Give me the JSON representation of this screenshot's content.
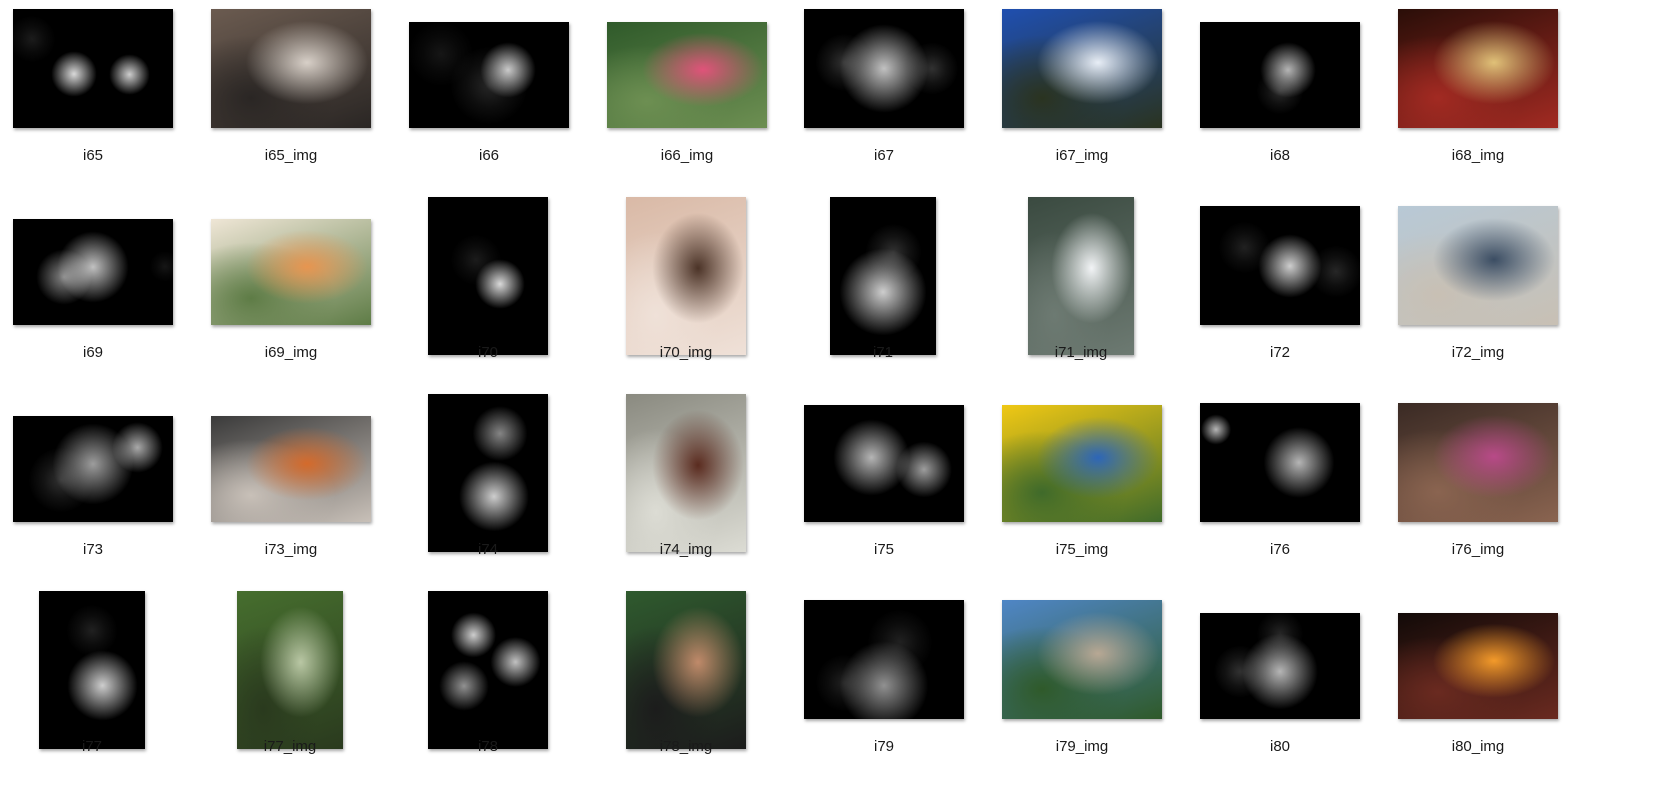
{
  "files": [
    {
      "name": "i65",
      "kind": "heatmap"
    },
    {
      "name": "i65_img",
      "kind": "photo",
      "palette": [
        "#6b5b50",
        "#d8d0c8",
        "#2a2624"
      ]
    },
    {
      "name": "i66",
      "kind": "heatmap"
    },
    {
      "name": "i66_img",
      "kind": "photo",
      "palette": [
        "#2f5a2a",
        "#e0537a",
        "#6d8f52"
      ]
    },
    {
      "name": "i67",
      "kind": "heatmap"
    },
    {
      "name": "i67_img",
      "kind": "photo",
      "palette": [
        "#1f4fb0",
        "#e8eef6",
        "#2a3320"
      ]
    },
    {
      "name": "i68",
      "kind": "heatmap"
    },
    {
      "name": "i68_img",
      "kind": "photo",
      "palette": [
        "#2a0e08",
        "#e0c178",
        "#a22a22"
      ]
    },
    {
      "name": "i69",
      "kind": "heatmap"
    },
    {
      "name": "i69_img",
      "kind": "photo",
      "palette": [
        "#efe6d6",
        "#e79550",
        "#5e7c46"
      ]
    },
    {
      "name": "i70",
      "kind": "heatmap"
    },
    {
      "name": "i70_img",
      "kind": "photo",
      "palette": [
        "#d9b9a6",
        "#4b3327",
        "#efe1d8"
      ]
    },
    {
      "name": "i71",
      "kind": "heatmap"
    },
    {
      "name": "i71_img",
      "kind": "photo",
      "palette": [
        "#3a4a40",
        "#f2f4f6",
        "#6d7a72"
      ]
    },
    {
      "name": "i72",
      "kind": "heatmap"
    },
    {
      "name": "i72_img",
      "kind": "photo",
      "palette": [
        "#b8c9d6",
        "#3b4d63",
        "#c8c0b4"
      ]
    },
    {
      "name": "i73",
      "kind": "heatmap"
    },
    {
      "name": "i73_img",
      "kind": "photo",
      "palette": [
        "#3a3a3a",
        "#d46a2b",
        "#c8c0b8"
      ]
    },
    {
      "name": "i74",
      "kind": "heatmap"
    },
    {
      "name": "i74_img",
      "kind": "photo",
      "palette": [
        "#8a8a80",
        "#5a2b1f",
        "#dcdcd4"
      ]
    },
    {
      "name": "i75",
      "kind": "heatmap"
    },
    {
      "name": "i75_img",
      "kind": "photo",
      "palette": [
        "#f0c814",
        "#2d66b8",
        "#3f6a2a"
      ]
    },
    {
      "name": "i76",
      "kind": "heatmap"
    },
    {
      "name": "i76_img",
      "kind": "photo",
      "palette": [
        "#3a2a24",
        "#b84a88",
        "#8a6450"
      ]
    },
    {
      "name": "i77",
      "kind": "heatmap"
    },
    {
      "name": "i77_img",
      "kind": "photo",
      "palette": [
        "#466e2e",
        "#b9c7a4",
        "#2a3a1e"
      ]
    },
    {
      "name": "i78",
      "kind": "heatmap"
    },
    {
      "name": "i78_img",
      "kind": "photo",
      "palette": [
        "#2f5a2e",
        "#c08a6a",
        "#1c1c1c"
      ]
    },
    {
      "name": "i79",
      "kind": "heatmap"
    },
    {
      "name": "i79_img",
      "kind": "photo",
      "palette": [
        "#4f86c6",
        "#b8a894",
        "#2f5a2a"
      ]
    },
    {
      "name": "i80",
      "kind": "heatmap"
    },
    {
      "name": "i80_img",
      "kind": "photo",
      "palette": [
        "#120a08",
        "#f39a2a",
        "#6a2a20"
      ]
    }
  ],
  "heatmaps": {
    "i65": [
      [
        0.38,
        0.55,
        0.18,
        0.9
      ],
      [
        0.73,
        0.55,
        0.16,
        0.85
      ],
      [
        0.12,
        0.25,
        0.18,
        0.25
      ]
    ],
    "i66": [
      [
        0.62,
        0.45,
        0.22,
        0.85
      ],
      [
        0.5,
        0.6,
        0.3,
        0.35
      ],
      [
        0.2,
        0.3,
        0.25,
        0.2
      ]
    ],
    "i67": [
      [
        0.5,
        0.5,
        0.35,
        0.8
      ],
      [
        0.25,
        0.45,
        0.22,
        0.45
      ],
      [
        0.8,
        0.5,
        0.2,
        0.45
      ]
    ],
    "i68": [
      [
        0.55,
        0.45,
        0.22,
        0.75
      ],
      [
        0.5,
        0.65,
        0.18,
        0.4
      ]
    ],
    "i69": [
      [
        0.5,
        0.45,
        0.28,
        0.8
      ],
      [
        0.32,
        0.55,
        0.22,
        0.55
      ],
      [
        0.95,
        0.45,
        0.12,
        0.2
      ]
    ],
    "i70": [
      [
        0.6,
        0.55,
        0.2,
        0.9
      ],
      [
        0.4,
        0.4,
        0.2,
        0.25
      ]
    ],
    "i71": [
      [
        0.5,
        0.6,
        0.35,
        0.85
      ],
      [
        0.6,
        0.35,
        0.22,
        0.45
      ]
    ],
    "i72": [
      [
        0.56,
        0.5,
        0.25,
        0.85
      ],
      [
        0.28,
        0.35,
        0.2,
        0.3
      ],
      [
        0.85,
        0.55,
        0.2,
        0.35
      ]
    ],
    "i73": [
      [
        0.5,
        0.45,
        0.32,
        0.65
      ],
      [
        0.78,
        0.3,
        0.2,
        0.7
      ],
      [
        0.3,
        0.6,
        0.25,
        0.45
      ]
    ],
    "i74": [
      [
        0.55,
        0.65,
        0.28,
        0.85
      ],
      [
        0.6,
        0.25,
        0.22,
        0.55
      ]
    ],
    "i75": [
      [
        0.42,
        0.45,
        0.3,
        0.75
      ],
      [
        0.75,
        0.55,
        0.22,
        0.65
      ]
    ],
    "i76": [
      [
        0.1,
        0.22,
        0.12,
        0.75
      ],
      [
        0.62,
        0.5,
        0.28,
        0.75
      ]
    ],
    "i77": [
      [
        0.6,
        0.6,
        0.28,
        0.85
      ],
      [
        0.5,
        0.25,
        0.2,
        0.3
      ]
    ],
    "i78": [
      [
        0.38,
        0.28,
        0.18,
        0.85
      ],
      [
        0.3,
        0.6,
        0.2,
        0.6
      ],
      [
        0.73,
        0.45,
        0.2,
        0.8
      ]
    ],
    "i79": [
      [
        0.5,
        0.72,
        0.35,
        0.6
      ],
      [
        0.6,
        0.35,
        0.25,
        0.3
      ],
      [
        0.25,
        0.7,
        0.22,
        0.3
      ]
    ],
    "i80": [
      [
        0.5,
        0.55,
        0.3,
        0.75
      ],
      [
        0.25,
        0.55,
        0.2,
        0.45
      ],
      [
        0.5,
        0.2,
        0.18,
        0.35
      ]
    ]
  }
}
